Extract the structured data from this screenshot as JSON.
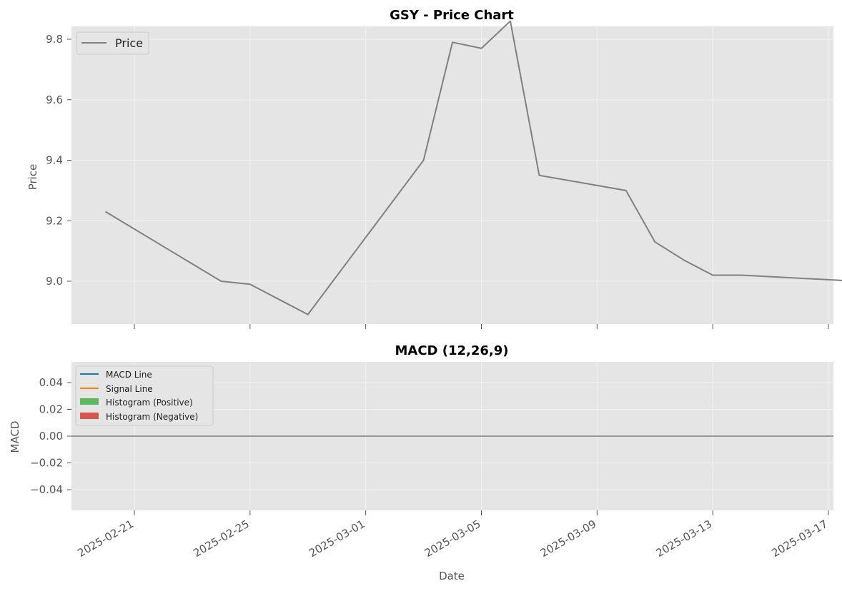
{
  "chart_data": [
    {
      "type": "line",
      "title": "GSY - Price Chart",
      "xlabel": "",
      "ylabel": "Price",
      "x": [
        "2025-02-20",
        "2025-02-24",
        "2025-02-25",
        "2025-02-27",
        "2025-03-03",
        "2025-03-04",
        "2025-03-05",
        "2025-03-06",
        "2025-03-07",
        "2025-03-10",
        "2025-03-11",
        "2025-03-12",
        "2025-03-13",
        "2025-03-14",
        "2025-03-18"
      ],
      "series": [
        {
          "name": "Price",
          "values": [
            9.23,
            9.0,
            8.99,
            8.89,
            9.4,
            9.79,
            9.77,
            9.86,
            9.35,
            9.3,
            9.13,
            9.07,
            9.02,
            9.02,
            9.0
          ]
        }
      ],
      "xlim": [
        "2025-02-18",
        "2025-03-19"
      ],
      "ylim": [
        8.84,
        9.91
      ],
      "yticks": [
        9.0,
        9.2,
        9.4,
        9.6,
        9.8
      ],
      "ytick_labels": [
        "9.0",
        "9.2",
        "9.4",
        "9.6",
        "9.8"
      ],
      "grid": true,
      "legend": "upper-left",
      "line_color": "#808080"
    },
    {
      "type": "line",
      "title": "MACD (12,26,9)",
      "xlabel": "Date",
      "ylabel": "MACD",
      "x": [],
      "series": [
        {
          "name": "MACD Line",
          "values": [],
          "color": "#1f77b4"
        },
        {
          "name": "Signal Line",
          "values": [],
          "color": "#ff7f0e"
        }
      ],
      "histogram_legend": [
        {
          "name": "Histogram (Positive)",
          "color": "#5cb85c"
        },
        {
          "name": "Histogram (Negative)",
          "color": "#d9534f"
        }
      ],
      "zero_line": 0.0,
      "ylim": [
        -0.055,
        0.055
      ],
      "yticks": [
        0.04,
        0.02,
        0.0,
        -0.02,
        -0.04
      ],
      "ytick_labels": [
        "0.04",
        "0.02",
        "0.00",
        "−0.02",
        "−0.04"
      ],
      "xticks": [
        "2025-02-21",
        "2025-02-25",
        "2025-03-01",
        "2025-03-05",
        "2025-03-09",
        "2025-03-13",
        "2025-03-17"
      ],
      "xtick_labels": [
        "2025-02-21",
        "2025-02-25",
        "2025-03-01",
        "2025-03-05",
        "2025-03-09",
        "2025-03-13",
        "2025-03-17"
      ],
      "grid": true,
      "legend": "upper-left"
    }
  ],
  "colors": {
    "panel_bg": "#e5e5e5",
    "grid": "#f2f2f2",
    "zero_line": "#999999"
  }
}
